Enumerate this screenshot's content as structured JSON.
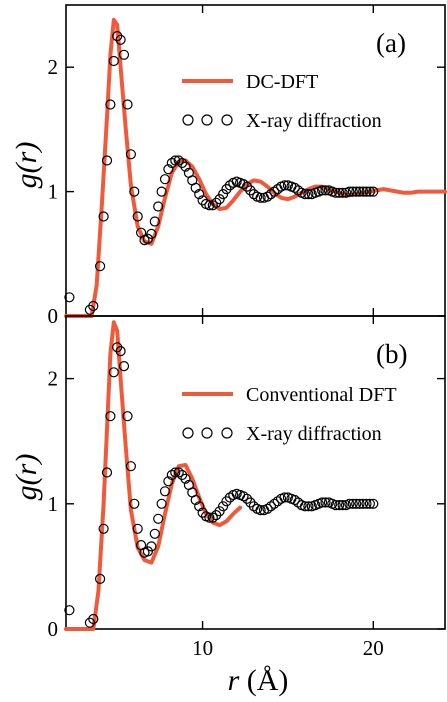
{
  "colors": {
    "dft_line": "#f05a3a",
    "xray_marker": "#000000",
    "axis": "#000000"
  },
  "chart_data": [
    {
      "type": "line",
      "panel_label": "(a)",
      "ylabel": "g(r)",
      "xlabel": "",
      "xlim": [
        2,
        24.2
      ],
      "ylim": [
        0,
        2.5
      ],
      "y_ticks": [
        0,
        1,
        2
      ],
      "x_ticks": [
        10,
        20
      ],
      "legend_position": "top-right",
      "series": [
        {
          "name": "DC-DFT",
          "style": "line",
          "x": [
            2.0,
            3.5,
            3.8,
            4.1,
            4.4,
            4.6,
            4.8,
            5.0,
            5.2,
            5.5,
            5.8,
            6.2,
            6.6,
            7.0,
            7.4,
            7.8,
            8.2,
            8.6,
            9.0,
            9.4,
            9.8,
            10.2,
            10.6,
            11.0,
            11.4,
            11.8,
            12.2,
            12.6,
            13.0,
            13.4,
            13.8,
            14.2,
            14.6,
            15.0,
            15.4,
            15.8,
            16.2,
            16.6,
            17.0,
            17.4,
            17.8,
            18.2,
            18.6,
            19.0,
            19.4,
            19.8,
            20.2,
            20.6,
            21.0,
            21.4,
            21.8,
            22.2,
            22.6,
            23.0,
            23.4,
            23.8,
            24.2
          ],
          "y": [
            0.0,
            0.0,
            0.25,
            0.9,
            1.6,
            2.1,
            2.38,
            2.34,
            2.0,
            1.5,
            1.05,
            0.72,
            0.6,
            0.58,
            0.72,
            0.95,
            1.15,
            1.24,
            1.25,
            1.2,
            1.1,
            0.98,
            0.9,
            0.86,
            0.87,
            0.93,
            1.0,
            1.06,
            1.09,
            1.08,
            1.04,
            0.99,
            0.95,
            0.94,
            0.96,
            0.99,
            1.02,
            1.04,
            1.04,
            1.02,
            1.0,
            0.98,
            0.97,
            0.98,
            0.99,
            1.0,
            1.01,
            1.02,
            1.01,
            1.0,
            0.99,
            0.99,
            1.0,
            1.0,
            1.0,
            1.0,
            1.0
          ]
        },
        {
          "name": "X-ray diffraction",
          "style": "markers",
          "x": [
            2.2,
            3.4,
            3.6,
            4.0,
            4.2,
            4.4,
            4.6,
            4.8,
            5.0,
            5.2,
            5.4,
            5.6,
            5.8,
            6.0,
            6.2,
            6.4,
            6.6,
            6.8,
            7.0,
            7.2,
            7.4,
            7.6,
            7.8,
            8.0,
            8.2,
            8.4,
            8.6,
            8.8,
            9.0,
            9.2,
            9.4,
            9.6,
            9.8,
            10.0,
            10.2,
            10.4,
            10.6,
            10.8,
            11.0,
            11.2,
            11.4,
            11.6,
            11.8,
            12.0,
            12.2,
            12.4,
            12.6,
            12.8,
            13.0,
            13.2,
            13.4,
            13.6,
            13.8,
            14.0,
            14.2,
            14.4,
            14.6,
            14.8,
            15.0,
            15.2,
            15.4,
            15.6,
            15.8,
            16.0,
            16.2,
            16.4,
            16.6,
            16.8,
            17.0,
            17.2,
            17.4,
            17.6,
            17.8,
            18.0,
            18.2,
            18.4,
            18.6,
            18.8,
            19.0,
            19.2,
            19.4,
            19.6,
            19.8,
            20.0
          ],
          "y": [
            0.15,
            0.05,
            0.08,
            0.4,
            0.8,
            1.25,
            1.7,
            2.05,
            2.25,
            2.22,
            2.1,
            1.7,
            1.3,
            1.0,
            0.8,
            0.67,
            0.61,
            0.62,
            0.66,
            0.76,
            0.88,
            1.0,
            1.1,
            1.18,
            1.23,
            1.25,
            1.25,
            1.23,
            1.2,
            1.15,
            1.09,
            1.03,
            0.98,
            0.93,
            0.9,
            0.89,
            0.89,
            0.91,
            0.94,
            0.98,
            1.02,
            1.05,
            1.07,
            1.08,
            1.07,
            1.06,
            1.04,
            1.01,
            0.98,
            0.96,
            0.95,
            0.95,
            0.96,
            0.98,
            1.0,
            1.02,
            1.04,
            1.05,
            1.05,
            1.04,
            1.03,
            1.01,
            0.99,
            0.98,
            0.98,
            0.98,
            0.99,
            1.0,
            1.01,
            1.01,
            1.01,
            1.0,
            0.99,
            0.99,
            0.99,
            0.99,
            1.0,
            1.0,
            1.0,
            1.0,
            1.0,
            1.0,
            1.0,
            1.0
          ]
        }
      ]
    },
    {
      "type": "line",
      "panel_label": "(b)",
      "ylabel": "g(r)",
      "xlabel": "r (Å)",
      "xlim": [
        2,
        24.2
      ],
      "ylim": [
        0,
        2.5
      ],
      "y_ticks": [
        0,
        1,
        2
      ],
      "x_ticks": [
        10,
        20
      ],
      "legend_position": "top-right",
      "series": [
        {
          "name": "Conventional DFT",
          "style": "line",
          "x": [
            2.0,
            3.6,
            3.9,
            4.2,
            4.4,
            4.6,
            4.8,
            5.0,
            5.2,
            5.5,
            5.8,
            6.2,
            6.6,
            7.0,
            7.4,
            7.8,
            8.2,
            8.6,
            9.0,
            9.4,
            9.8,
            10.2,
            10.6,
            11.0,
            11.4,
            11.8,
            12.2
          ],
          "y": [
            0.0,
            0.0,
            0.3,
            1.0,
            1.6,
            2.2,
            2.45,
            2.38,
            2.0,
            1.45,
            0.95,
            0.65,
            0.55,
            0.53,
            0.66,
            0.92,
            1.16,
            1.3,
            1.31,
            1.2,
            1.05,
            0.92,
            0.85,
            0.83,
            0.86,
            0.92,
            0.97
          ]
        },
        {
          "name": "X-ray diffraction",
          "style": "markers",
          "x": [
            2.2,
            3.4,
            3.6,
            4.0,
            4.2,
            4.4,
            4.6,
            4.8,
            5.0,
            5.2,
            5.4,
            5.6,
            5.8,
            6.0,
            6.2,
            6.4,
            6.6,
            6.8,
            7.0,
            7.2,
            7.4,
            7.6,
            7.8,
            8.0,
            8.2,
            8.4,
            8.6,
            8.8,
            9.0,
            9.2,
            9.4,
            9.6,
            9.8,
            10.0,
            10.2,
            10.4,
            10.6,
            10.8,
            11.0,
            11.2,
            11.4,
            11.6,
            11.8,
            12.0,
            12.2,
            12.4,
            12.6,
            12.8,
            13.0,
            13.2,
            13.4,
            13.6,
            13.8,
            14.0,
            14.2,
            14.4,
            14.6,
            14.8,
            15.0,
            15.2,
            15.4,
            15.6,
            15.8,
            16.0,
            16.2,
            16.4,
            16.6,
            16.8,
            17.0,
            17.2,
            17.4,
            17.6,
            17.8,
            18.0,
            18.2,
            18.4,
            18.6,
            18.8,
            19.0,
            19.2,
            19.4,
            19.6,
            19.8,
            20.0
          ],
          "y": [
            0.15,
            0.05,
            0.08,
            0.4,
            0.8,
            1.25,
            1.7,
            2.05,
            2.25,
            2.22,
            2.1,
            1.7,
            1.3,
            1.0,
            0.8,
            0.67,
            0.61,
            0.62,
            0.66,
            0.76,
            0.88,
            1.0,
            1.1,
            1.18,
            1.23,
            1.25,
            1.25,
            1.23,
            1.2,
            1.15,
            1.09,
            1.03,
            0.98,
            0.93,
            0.9,
            0.89,
            0.89,
            0.91,
            0.94,
            0.98,
            1.02,
            1.05,
            1.07,
            1.08,
            1.07,
            1.06,
            1.04,
            1.01,
            0.98,
            0.96,
            0.95,
            0.95,
            0.96,
            0.98,
            1.0,
            1.02,
            1.04,
            1.05,
            1.05,
            1.04,
            1.03,
            1.01,
            0.99,
            0.98,
            0.98,
            0.98,
            0.99,
            1.0,
            1.01,
            1.01,
            1.01,
            1.0,
            0.99,
            0.99,
            0.99,
            0.99,
            1.0,
            1.0,
            1.0,
            1.0,
            1.0,
            1.0,
            1.0,
            1.0
          ]
        }
      ]
    }
  ],
  "axis_text": {
    "ylabel_main": "g(",
    "ylabel_var": "r",
    "ylabel_close": ")",
    "xlabel_var": "r",
    "xlabel_unit": " (Å)"
  }
}
